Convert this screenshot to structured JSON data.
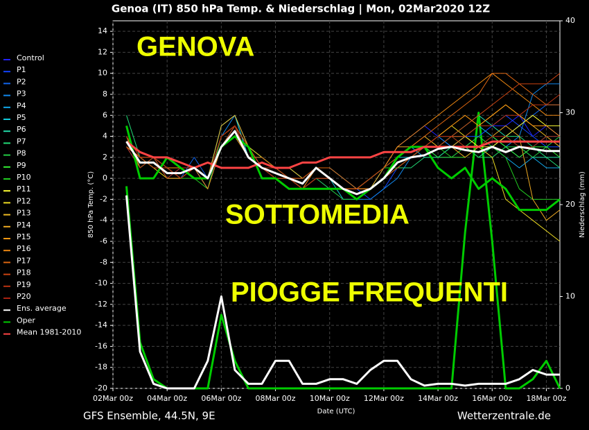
{
  "chart_data": {
    "type": "line",
    "title": "Genoa  (IT)  850 hPa Temp. & Niederschlag | Mon, 02Mar2020 12Z",
    "subtitle": "GFS Ensemble, 44.5N, 9E",
    "source": "Wetterzentrale.de",
    "x_label": "Date (UTC)",
    "y_label": "850 hPa Temp. (°C)",
    "y2_label": "Niederschlag (mm)",
    "annotations": [
      "GENOVA",
      "SOTTOMEDIA",
      "PIOGGE FREQUENTI"
    ],
    "x": [
      "02Mar 12z",
      "03Mar 00z",
      "03Mar 12z",
      "04Mar 00z",
      "04Mar 12z",
      "05Mar 00z",
      "05Mar 12z",
      "06Mar 00z",
      "06Mar 12z",
      "07Mar 00z",
      "07Mar 12z",
      "08Mar 00z",
      "08Mar 12z",
      "09Mar 00z",
      "09Mar 12z",
      "10Mar 00z",
      "10Mar 12z",
      "11Mar 00z",
      "11Mar 12z",
      "12Mar 00z",
      "12Mar 12z",
      "13Mar 00z",
      "13Mar 12z",
      "14Mar 00z",
      "14Mar 12z",
      "15Mar 00z",
      "15Mar 12z",
      "16Mar 00z",
      "16Mar 12z",
      "17Mar 00z",
      "17Mar 12z",
      "18Mar 00z",
      "18Mar 12z"
    ],
    "xticks": [
      "02Mar 00z",
      "04Mar 00z",
      "06Mar 00z",
      "08Mar 00z",
      "10Mar 00z",
      "12Mar 00z",
      "14Mar 00z",
      "16Mar 00z",
      "18Mar 00z"
    ],
    "ylim": [
      -20,
      15
    ],
    "yticks": [
      -20,
      -18,
      -16,
      -14,
      -12,
      -10,
      -8,
      -6,
      -4,
      -2,
      0,
      2,
      4,
      6,
      8,
      10,
      12,
      14
    ],
    "y2lim": [
      0,
      40
    ],
    "y2ticks": [
      0,
      10,
      20,
      30,
      40
    ],
    "grid": true,
    "legend": "left",
    "series": [
      {
        "name": "Control",
        "color": "#2222ff",
        "values": [
          4,
          2,
          1,
          1,
          0,
          1,
          -1,
          4,
          5,
          2,
          1,
          0,
          0,
          -1,
          0,
          -1,
          -1,
          -1,
          0,
          1,
          3,
          4,
          5,
          4,
          3,
          3,
          4,
          5,
          5,
          6,
          4,
          5,
          4
        ]
      },
      {
        "name": "P1",
        "color": "#1144ff",
        "values": [
          3,
          1,
          2,
          0,
          1,
          1,
          0,
          3,
          5,
          3,
          1,
          0,
          0,
          0,
          1,
          1,
          0,
          -1,
          -2,
          -1,
          1,
          2,
          3,
          3,
          3,
          4,
          4,
          5,
          6,
          5,
          4,
          3,
          3
        ]
      },
      {
        "name": "P2",
        "color": "#1166ee",
        "values": [
          4,
          2,
          1,
          1,
          0,
          2,
          0,
          5,
          6,
          3,
          2,
          1,
          0,
          -1,
          0,
          0,
          -1,
          -2,
          -1,
          0,
          1,
          2,
          3,
          2,
          2,
          3,
          2,
          3,
          4,
          5,
          6,
          7,
          7
        ]
      },
      {
        "name": "P3",
        "color": "#1188ee",
        "values": [
          3,
          2,
          2,
          1,
          1,
          1,
          0,
          4,
          6,
          2,
          1,
          1,
          1,
          0,
          1,
          0,
          -1,
          -2,
          -2,
          -1,
          0,
          2,
          3,
          4,
          3,
          3,
          2,
          2,
          3,
          4,
          8,
          9,
          9
        ]
      },
      {
        "name": "P4",
        "color": "#11aaee",
        "values": [
          4,
          1,
          2,
          0,
          0,
          1,
          -1,
          3,
          5,
          2,
          1,
          0,
          -1,
          -1,
          0,
          0,
          -1,
          -1,
          0,
          1,
          2,
          3,
          2,
          2,
          3,
          3,
          4,
          3,
          2,
          1,
          2,
          1,
          1
        ]
      },
      {
        "name": "P5",
        "color": "#11ccdd",
        "values": [
          3,
          2,
          1,
          1,
          0,
          1,
          0,
          5,
          6,
          2,
          2,
          1,
          0,
          -1,
          1,
          0,
          -2,
          -2,
          -1,
          1,
          2,
          2,
          3,
          3,
          4,
          4,
          5,
          4,
          3,
          2,
          3,
          4,
          4
        ]
      },
      {
        "name": "P6",
        "color": "#22ddaa",
        "values": [
          4,
          2,
          1,
          1,
          0,
          1,
          0,
          3,
          4,
          2,
          2,
          1,
          1,
          0,
          1,
          1,
          0,
          -1,
          -1,
          0,
          1,
          2,
          3,
          3,
          4,
          5,
          6,
          5,
          4,
          3,
          2,
          2,
          2
        ]
      },
      {
        "name": "P7",
        "color": "#22dd77",
        "values": [
          6,
          2,
          2,
          0,
          0,
          1,
          0,
          4,
          5,
          3,
          2,
          1,
          0,
          0,
          1,
          0,
          -1,
          -2,
          -1,
          0,
          1,
          1,
          2,
          2,
          3,
          3,
          2,
          3,
          4,
          4,
          3,
          2,
          1
        ]
      },
      {
        "name": "P8",
        "color": "#22cc44",
        "values": [
          3,
          2,
          2,
          1,
          0,
          1,
          0,
          4,
          5,
          2,
          1,
          0,
          -1,
          -1,
          0,
          -1,
          -2,
          -2,
          -1,
          0,
          2,
          3,
          3,
          4,
          4,
          3,
          2,
          2,
          3,
          3,
          2,
          3,
          4
        ]
      },
      {
        "name": "P9",
        "color": "#33ee33",
        "values": [
          4,
          1,
          2,
          1,
          0,
          1,
          0,
          4,
          5,
          2,
          1,
          0,
          0,
          0,
          1,
          0,
          -1,
          -1,
          0,
          1,
          2,
          3,
          3,
          2,
          2,
          2,
          3,
          4,
          3,
          2,
          3,
          3,
          2
        ]
      },
      {
        "name": "P10",
        "color": "#22cc22",
        "values": [
          3,
          2,
          1,
          1,
          0,
          0,
          -1,
          4,
          5,
          3,
          2,
          1,
          0,
          -1,
          0,
          0,
          -1,
          -1,
          0,
          1,
          1,
          2,
          3,
          3,
          2,
          3,
          4,
          3,
          2,
          -1,
          -2,
          -2,
          -2
        ]
      },
      {
        "name": "P11",
        "color": "#ffff33",
        "values": [
          3,
          2,
          2,
          1,
          1,
          1,
          0,
          4,
          5,
          2,
          1,
          1,
          0,
          -1,
          0,
          0,
          -1,
          -2,
          -1,
          0,
          2,
          3,
          3,
          3,
          4,
          4,
          3,
          3,
          4,
          5,
          6,
          5,
          5
        ]
      },
      {
        "name": "P12",
        "color": "#eedd22",
        "values": [
          4,
          2,
          1,
          0,
          0,
          1,
          0,
          3,
          5,
          2,
          1,
          0,
          0,
          -1,
          1,
          0,
          -1,
          -1,
          0,
          1,
          2,
          3,
          3,
          4,
          5,
          4,
          3,
          2,
          -2,
          -3,
          -4,
          -5,
          -6
        ]
      },
      {
        "name": "P13",
        "color": "#eebb22",
        "values": [
          3,
          2,
          2,
          1,
          0,
          1,
          0,
          5,
          6,
          3,
          2,
          1,
          1,
          0,
          1,
          0,
          -1,
          -1,
          -1,
          0,
          2,
          3,
          4,
          3,
          3,
          4,
          5,
          6,
          7,
          6,
          5,
          4,
          3
        ]
      },
      {
        "name": "P14",
        "color": "#eeaa22",
        "values": [
          4,
          1,
          2,
          1,
          0,
          1,
          0,
          4,
          5,
          2,
          1,
          0,
          0,
          0,
          1,
          0,
          -1,
          -1,
          -1,
          1,
          3,
          3,
          3,
          3,
          3,
          2,
          3,
          4,
          5,
          4,
          -2,
          -4,
          -3
        ]
      },
      {
        "name": "P15",
        "color": "#ff9911",
        "values": [
          3,
          2,
          1,
          1,
          1,
          1,
          0,
          4,
          5,
          3,
          1,
          1,
          0,
          -1,
          0,
          0,
          -1,
          -2,
          -1,
          0,
          1,
          2,
          3,
          4,
          5,
          6,
          5,
          6,
          7,
          6,
          5,
          5,
          4
        ]
      },
      {
        "name": "P16",
        "color": "#ee8811",
        "values": [
          4,
          2,
          2,
          0,
          0,
          1,
          -1,
          3,
          4,
          2,
          1,
          0,
          0,
          0,
          1,
          0,
          -1,
          -1,
          0,
          1,
          3,
          4,
          5,
          6,
          7,
          8,
          9,
          10,
          9,
          8,
          7,
          6,
          6
        ]
      },
      {
        "name": "P17",
        "color": "#dd6611",
        "values": [
          3,
          2,
          2,
          1,
          0,
          1,
          0,
          4,
          5,
          2,
          2,
          1,
          0,
          -1,
          1,
          1,
          0,
          -1,
          -1,
          0,
          2,
          3,
          4,
          5,
          6,
          7,
          8,
          10,
          10,
          9,
          8,
          7,
          7
        ]
      },
      {
        "name": "P18",
        "color": "#cc4411",
        "values": [
          4,
          2,
          1,
          1,
          0,
          1,
          0,
          4,
          5,
          3,
          1,
          0,
          -1,
          -1,
          0,
          0,
          -1,
          -2,
          -1,
          0,
          1,
          2,
          3,
          4,
          4,
          5,
          6,
          7,
          8,
          9,
          9,
          9,
          10
        ]
      },
      {
        "name": "P19",
        "color": "#bb3311",
        "values": [
          3,
          1,
          2,
          0,
          1,
          1,
          0,
          3,
          5,
          2,
          1,
          1,
          0,
          0,
          1,
          0,
          -1,
          -1,
          0,
          1,
          2,
          3,
          3,
          3,
          4,
          4,
          5,
          5,
          6,
          6,
          7,
          7,
          8
        ]
      },
      {
        "name": "P20",
        "color": "#aa2211",
        "values": [
          4,
          2,
          2,
          1,
          0,
          1,
          0,
          4,
          5,
          2,
          1,
          0,
          0,
          -1,
          0,
          0,
          -1,
          -2,
          -1,
          0,
          2,
          3,
          3,
          4,
          4,
          3,
          3,
          4,
          4,
          3,
          3,
          4,
          4
        ]
      },
      {
        "name": "Ens. average",
        "color": "#ffffff",
        "values": [
          3.5,
          1.5,
          1.5,
          0.5,
          0.5,
          1,
          0,
          3,
          4.5,
          2,
          1,
          0.5,
          0,
          -0.5,
          1,
          0,
          -1,
          -1.5,
          -1,
          0,
          1.5,
          2,
          2.2,
          2.8,
          3,
          2.7,
          2.5,
          3,
          2.5,
          3,
          2.8,
          2.6,
          2.6
        ],
        "precip": [
          21,
          4,
          0.5,
          0,
          0,
          0,
          3,
          10,
          2,
          0.5,
          0.5,
          3,
          3,
          0.5,
          0.5,
          1,
          1,
          0.5,
          2,
          3,
          3,
          1,
          0.3,
          0.5,
          0.5,
          0.3,
          0.5,
          0.5,
          0.5,
          1,
          2,
          1.5,
          1.5
        ]
      },
      {
        "name": "Oper",
        "color": "#00cc00",
        "values": [
          5,
          0,
          0,
          2,
          1,
          0,
          0,
          3,
          4,
          3,
          0,
          0,
          -1,
          -1,
          -1,
          -1,
          -1,
          -2,
          -1,
          0,
          2,
          3,
          3,
          1,
          0,
          1,
          -1,
          0,
          -1,
          -3,
          -3,
          -3,
          -2
        ],
        "precip": [
          22,
          5,
          1,
          0,
          0,
          0,
          0,
          8,
          3,
          0,
          0,
          0,
          0,
          0,
          0,
          0,
          0,
          0,
          0,
          0,
          0,
          0,
          0,
          0,
          0,
          17,
          30,
          16,
          0,
          0,
          1,
          3,
          0
        ]
      },
      {
        "name": "Mean 1981-2010",
        "color": "#ff4444",
        "values": [
          3.5,
          2.5,
          2,
          2,
          1.5,
          1,
          1.5,
          1,
          1,
          1,
          1.5,
          1,
          1,
          1.5,
          1.5,
          2,
          2,
          2,
          2,
          2.5,
          2.5,
          2.5,
          3,
          3,
          3,
          3,
          3,
          3.5,
          3.5,
          3.5,
          3.5,
          3.5,
          3.5
        ]
      }
    ]
  }
}
